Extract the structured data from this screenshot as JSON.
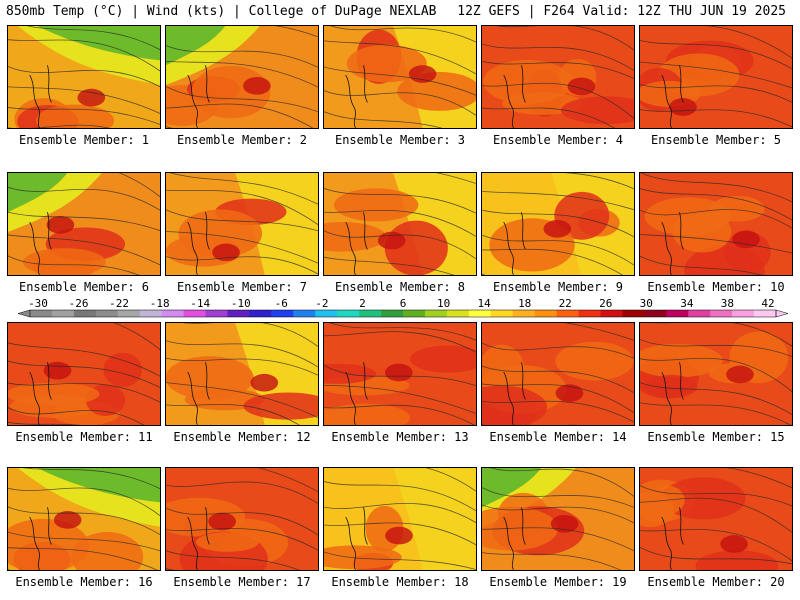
{
  "header": {
    "left": "850mb Temp (°C) | Wind (kts) | College of DuPage NEXLAB",
    "right": "12Z GEFS | F264 Valid: 12Z THU JUN 19 2025"
  },
  "colorbar": {
    "ticks": [
      "-30",
      "-26",
      "-22",
      "-18",
      "-14",
      "-10",
      "-6",
      "-2",
      "2",
      "6",
      "10",
      "14",
      "18",
      "22",
      "26",
      "30",
      "34",
      "38",
      "42"
    ],
    "colors": [
      "#8a8a8a",
      "#a0a0a0",
      "#787878",
      "#8c8c8c",
      "#a6a6a6",
      "#c2b4d6",
      "#d28cf0",
      "#e050e0",
      "#a040d0",
      "#6020c0",
      "#3020d0",
      "#2040f0",
      "#2080f0",
      "#20c0f0",
      "#20d8c0",
      "#20c080",
      "#30a040",
      "#60b020",
      "#a0d020",
      "#d8e020",
      "#ffff40",
      "#ffd820",
      "#ffb020",
      "#ff9010",
      "#ff6010",
      "#f03010",
      "#d01010",
      "#a00000",
      "#900020",
      "#c00060",
      "#e040a0",
      "#f070c0",
      "#f8a0e0",
      "#fcc8f0"
    ]
  },
  "panels": [
    {
      "label": "Ensemble Member: 1",
      "theme": "green-ne"
    },
    {
      "label": "Ensemble Member: 2",
      "theme": "green-nw"
    },
    {
      "label": "Ensemble Member: 3",
      "theme": "yellow-e"
    },
    {
      "label": "Ensemble Member: 4",
      "theme": "red"
    },
    {
      "label": "Ensemble Member: 5",
      "theme": "red"
    },
    {
      "label": "Ensemble Member: 6",
      "theme": "green-nw"
    },
    {
      "label": "Ensemble Member: 7",
      "theme": "yellow-e"
    },
    {
      "label": "Ensemble Member: 8",
      "theme": "yellow-e"
    },
    {
      "label": "Ensemble Member: 9",
      "theme": "yellow"
    },
    {
      "label": "Ensemble Member: 10",
      "theme": "red"
    },
    {
      "label": "Ensemble Member: 11",
      "theme": "red"
    },
    {
      "label": "Ensemble Member: 12",
      "theme": "yellow-e"
    },
    {
      "label": "Ensemble Member: 13",
      "theme": "red"
    },
    {
      "label": "Ensemble Member: 14",
      "theme": "red"
    },
    {
      "label": "Ensemble Member: 15",
      "theme": "red"
    },
    {
      "label": "Ensemble Member: 16",
      "theme": "green-ne"
    },
    {
      "label": "Ensemble Member: 17",
      "theme": "red"
    },
    {
      "label": "Ensemble Member: 18",
      "theme": "yellow"
    },
    {
      "label": "Ensemble Member: 19",
      "theme": "green-nw"
    },
    {
      "label": "Ensemble Member: 20",
      "theme": "red"
    }
  ]
}
